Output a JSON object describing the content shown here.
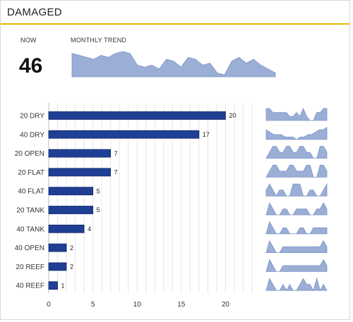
{
  "header": {
    "title": "DAMAGED"
  },
  "summary": {
    "now_label": "NOW",
    "now_value": "46",
    "trend_label": "MONTHLY TREND"
  },
  "colors": {
    "accent": "#e5b800",
    "bar_fill": "#1f3f94",
    "sparkline_fill": "#9aaed6",
    "sparkline_stroke": "#7d94c6"
  },
  "monthly_trend": [
    12,
    11,
    10,
    9,
    11,
    10,
    12,
    13,
    12,
    6,
    5,
    6,
    4,
    9,
    8,
    5,
    10,
    9,
    6,
    7,
    2,
    1,
    8,
    10,
    7,
    9,
    6,
    4,
    2
  ],
  "chart_data": {
    "type": "bar",
    "orientation": "horizontal",
    "categories": [
      "20 DRY",
      "40 DRY",
      "20 OPEN",
      "20 FLAT",
      "40 FLAT",
      "20 TANK",
      "40 TANK",
      "40 OPEN",
      "20 REEF",
      "40 REEF"
    ],
    "values": [
      20,
      17,
      7,
      7,
      5,
      5,
      4,
      2,
      2,
      1
    ],
    "xlim": [
      0,
      23
    ],
    "xticks": [
      0,
      5,
      10,
      15,
      20
    ],
    "grid": true,
    "sparklines": [
      [
        3,
        3,
        2,
        2,
        2,
        2,
        2,
        1,
        1,
        2,
        1,
        3,
        1,
        0,
        0,
        2,
        2,
        3,
        3
      ],
      [
        4,
        3,
        2,
        2,
        2,
        1,
        1,
        1,
        0,
        1,
        1,
        2,
        2,
        3,
        4,
        4,
        5
      ],
      [
        0,
        1,
        2,
        2,
        1,
        1,
        2,
        2,
        1,
        1,
        2,
        2,
        1,
        1,
        0,
        0,
        2,
        2,
        1
      ],
      [
        0,
        1,
        2,
        2,
        1,
        1,
        1,
        2,
        2,
        1,
        1,
        1,
        2,
        2,
        0,
        0,
        2,
        2,
        1
      ],
      [
        1,
        2,
        1,
        0,
        1,
        1,
        0,
        0,
        2,
        2,
        2,
        0,
        0,
        1,
        1,
        0,
        0,
        1,
        2
      ],
      [
        0,
        2,
        1,
        0,
        0,
        1,
        1,
        0,
        0,
        1,
        1,
        1,
        1,
        0,
        0,
        1,
        1,
        2,
        1
      ],
      [
        0,
        2,
        1,
        0,
        0,
        1,
        1,
        0,
        0,
        0,
        1,
        1,
        0,
        0,
        1,
        1,
        1,
        1,
        1
      ],
      [
        0,
        2,
        1,
        0,
        0,
        1,
        1,
        1,
        1,
        1,
        1,
        1,
        1,
        1,
        1,
        1,
        1,
        2,
        1
      ],
      [
        0,
        2,
        1,
        0,
        0,
        1,
        1,
        1,
        1,
        1,
        1,
        1,
        1,
        1,
        1,
        1,
        1,
        2,
        1
      ],
      [
        0,
        2,
        1,
        0,
        0,
        1,
        0,
        1,
        0,
        0,
        1,
        2,
        1,
        1,
        0,
        2,
        0,
        1,
        0
      ]
    ]
  }
}
